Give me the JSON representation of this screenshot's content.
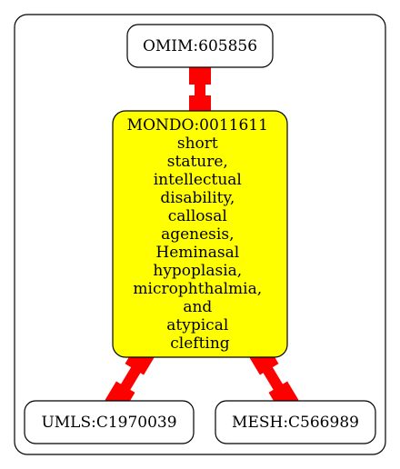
{
  "diagram": {
    "nodes": {
      "omim": {
        "label": "OMIM:605856"
      },
      "mondo": {
        "lines": [
          "MONDO:0011611",
          "short",
          "stature,",
          "intellectual",
          "disability,",
          "callosal",
          "agenesis,",
          "Heminasal",
          "hypoplasia,",
          "microphthalmia,",
          "and",
          "atypical",
          "clefting"
        ],
        "fill": "#ffff00"
      },
      "umls": {
        "label": "UMLS:C1970039"
      },
      "mesh": {
        "label": "MESH:C566989"
      }
    },
    "edges": [
      {
        "from": "omim",
        "to": "mondo"
      },
      {
        "from": "mondo",
        "to": "umls"
      },
      {
        "from": "mondo",
        "to": "mesh"
      }
    ],
    "edge_color": "#ff0000",
    "node_fill": "#ffffff",
    "stroke_color": "#000000"
  }
}
